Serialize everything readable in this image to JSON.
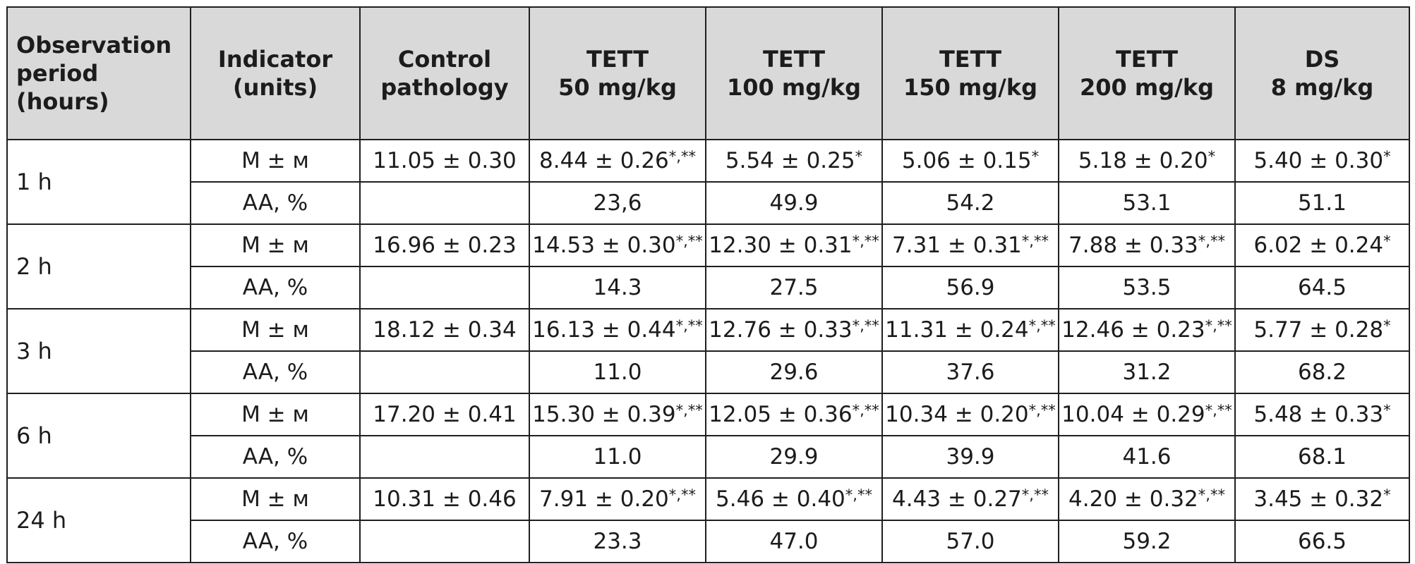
{
  "table": {
    "headers": [
      [
        "Observation",
        "period",
        "(hours)"
      ],
      [
        "Indicator",
        "(units)"
      ],
      [
        "Control",
        "pathology"
      ],
      [
        "TETT",
        "50 mg/kg"
      ],
      [
        "TETT",
        "100 mg/kg"
      ],
      [
        "TETT",
        "150 mg/kg"
      ],
      [
        "TETT",
        "200 mg/kg"
      ],
      [
        "DS",
        "8 mg/kg"
      ]
    ],
    "groups": [
      {
        "period": "1 h",
        "rows": [
          {
            "indicator": "M ± м",
            "cells": [
              {
                "v": "11.05 ± 0.30",
                "s": ""
              },
              {
                "v": "8.44 ± 0.26",
                "s": "*,**"
              },
              {
                "v": "5.54 ± 0.25",
                "s": "*"
              },
              {
                "v": "5.06 ± 0.15",
                "s": "*"
              },
              {
                "v": "5.18 ± 0.20",
                "s": "*"
              },
              {
                "v": "5.40 ± 0.30",
                "s": "*"
              }
            ]
          },
          {
            "indicator": "AA, %",
            "cells": [
              {
                "v": "",
                "s": ""
              },
              {
                "v": "23,6",
                "s": ""
              },
              {
                "v": "49.9",
                "s": ""
              },
              {
                "v": "54.2",
                "s": ""
              },
              {
                "v": "53.1",
                "s": ""
              },
              {
                "v": "51.1",
                "s": ""
              }
            ]
          }
        ]
      },
      {
        "period": "2 h",
        "rows": [
          {
            "indicator": "M ± м",
            "cells": [
              {
                "v": "16.96 ± 0.23",
                "s": ""
              },
              {
                "v": "14.53 ± 0.30",
                "s": "*,**"
              },
              {
                "v": "12.30 ± 0.31",
                "s": "*,**"
              },
              {
                "v": "7.31 ± 0.31",
                "s": "*,**"
              },
              {
                "v": "7.88 ± 0.33",
                "s": "*,**"
              },
              {
                "v": "6.02 ± 0.24",
                "s": "*"
              }
            ]
          },
          {
            "indicator": "AA, %",
            "cells": [
              {
                "v": "",
                "s": ""
              },
              {
                "v": "14.3",
                "s": ""
              },
              {
                "v": "27.5",
                "s": ""
              },
              {
                "v": "56.9",
                "s": ""
              },
              {
                "v": "53.5",
                "s": ""
              },
              {
                "v": "64.5",
                "s": ""
              }
            ]
          }
        ]
      },
      {
        "period": "3 h",
        "rows": [
          {
            "indicator": "M ± м",
            "cells": [
              {
                "v": "18.12 ± 0.34",
                "s": ""
              },
              {
                "v": "16.13 ± 0.44",
                "s": "*,**"
              },
              {
                "v": "12.76 ± 0.33",
                "s": "*,**"
              },
              {
                "v": "11.31 ± 0.24",
                "s": "*,**"
              },
              {
                "v": "12.46 ± 0.23",
                "s": "*,**"
              },
              {
                "v": "5.77 ± 0.28",
                "s": "*"
              }
            ]
          },
          {
            "indicator": "AA, %",
            "cells": [
              {
                "v": "",
                "s": ""
              },
              {
                "v": "11.0",
                "s": ""
              },
              {
                "v": "29.6",
                "s": ""
              },
              {
                "v": "37.6",
                "s": ""
              },
              {
                "v": "31.2",
                "s": ""
              },
              {
                "v": "68.2",
                "s": ""
              }
            ]
          }
        ]
      },
      {
        "period": "6 h",
        "rows": [
          {
            "indicator": "M ± м",
            "cells": [
              {
                "v": "17.20 ± 0.41",
                "s": ""
              },
              {
                "v": "15.30 ± 0.39",
                "s": "*,**"
              },
              {
                "v": "12.05 ± 0.36",
                "s": "*,**"
              },
              {
                "v": "10.34 ± 0.20",
                "s": "*,**"
              },
              {
                "v": "10.04 ± 0.29",
                "s": "*,**"
              },
              {
                "v": "5.48 ± 0.33",
                "s": "*"
              }
            ]
          },
          {
            "indicator": "AA, %",
            "cells": [
              {
                "v": "",
                "s": ""
              },
              {
                "v": "11.0",
                "s": ""
              },
              {
                "v": "29.9",
                "s": ""
              },
              {
                "v": "39.9",
                "s": ""
              },
              {
                "v": "41.6",
                "s": ""
              },
              {
                "v": "68.1",
                "s": ""
              }
            ]
          }
        ]
      },
      {
        "period": "24 h",
        "rows": [
          {
            "indicator": "M ± м",
            "cells": [
              {
                "v": "10.31 ± 0.46",
                "s": ""
              },
              {
                "v": "7.91 ± 0.20",
                "s": "*,**"
              },
              {
                "v": "5.46 ± 0.40",
                "s": "*,**"
              },
              {
                "v": "4.43 ± 0.27",
                "s": "*,**"
              },
              {
                "v": "4.20 ± 0.32",
                "s": "*,**"
              },
              {
                "v": "3.45 ± 0.32",
                "s": "*"
              }
            ]
          },
          {
            "indicator": "AA, %",
            "cells": [
              {
                "v": "",
                "s": ""
              },
              {
                "v": "23.3",
                "s": ""
              },
              {
                "v": "47.0",
                "s": ""
              },
              {
                "v": "57.0",
                "s": ""
              },
              {
                "v": "59.2",
                "s": ""
              },
              {
                "v": "66.5",
                "s": ""
              }
            ]
          }
        ]
      }
    ]
  },
  "colors": {
    "header_bg": "#d9d9d9",
    "border": "#1f1f1f",
    "text": "#1c1c1c"
  }
}
